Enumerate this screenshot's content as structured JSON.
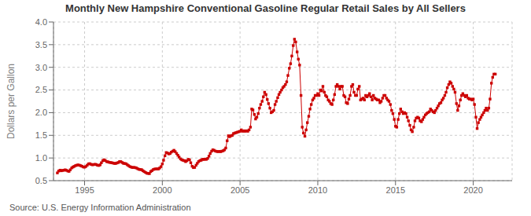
{
  "chart_data": {
    "type": "line",
    "title": "Monthly New Hampshire Conventional Gasoline Regular Retail Sales by All Sellers",
    "ylabel": "Dollars per Gallon",
    "annotation": "Source: U.S. Energy Information Administration",
    "color": "#cc0000",
    "marker": "square",
    "line_style": "solid",
    "grid": true,
    "xlim": [
      1993.0,
      2022.5
    ],
    "xticks": [
      1995,
      2000,
      2005,
      2010,
      2015,
      2020
    ],
    "ylim": [
      0.5,
      4.0
    ],
    "yticks": [
      0.5,
      {
        "value": 1.0,
        "label": "1.0"
      },
      1.5,
      {
        "value": 2.0,
        "label": "2.0"
      },
      2.5,
      {
        "value": 3.0,
        "label": "3.0"
      },
      3.5,
      {
        "value": 4.0,
        "label": "4.0"
      }
    ],
    "x": [
      1993.25,
      1993.33,
      1993.42,
      1993.5,
      1993.58,
      1993.67,
      1993.75,
      1993.83,
      1993.92,
      1994.0,
      1994.08,
      1994.17,
      1994.25,
      1994.33,
      1994.42,
      1994.5,
      1994.58,
      1994.67,
      1994.75,
      1994.83,
      1994.92,
      1995.0,
      1995.08,
      1995.17,
      1995.25,
      1995.33,
      1995.42,
      1995.5,
      1995.58,
      1995.67,
      1995.75,
      1995.83,
      1995.92,
      1996.0,
      1996.08,
      1996.17,
      1996.25,
      1996.33,
      1996.42,
      1996.5,
      1996.58,
      1996.67,
      1996.75,
      1996.83,
      1996.92,
      1997.0,
      1997.08,
      1997.17,
      1997.25,
      1997.33,
      1997.42,
      1997.5,
      1997.58,
      1997.67,
      1997.75,
      1997.83,
      1997.92,
      1998.0,
      1998.08,
      1998.17,
      1998.25,
      1998.33,
      1998.42,
      1998.5,
      1998.58,
      1998.67,
      1998.75,
      1998.83,
      1998.92,
      1999.0,
      1999.08,
      1999.17,
      1999.25,
      1999.33,
      1999.42,
      1999.5,
      1999.58,
      1999.67,
      1999.75,
      1999.83,
      1999.92,
      2000.0,
      2000.08,
      2000.17,
      2000.25,
      2000.33,
      2000.42,
      2000.5,
      2000.58,
      2000.67,
      2000.75,
      2000.83,
      2000.92,
      2001.0,
      2001.08,
      2001.17,
      2001.25,
      2001.33,
      2001.42,
      2001.5,
      2001.58,
      2001.67,
      2001.75,
      2001.83,
      2001.92,
      2002.0,
      2002.08,
      2002.17,
      2002.25,
      2002.33,
      2002.42,
      2002.5,
      2002.58,
      2002.67,
      2002.75,
      2002.83,
      2002.92,
      2003.0,
      2003.08,
      2003.17,
      2003.25,
      2003.33,
      2003.42,
      2003.5,
      2003.58,
      2003.67,
      2003.75,
      2003.83,
      2003.92,
      2004.0,
      2004.08,
      2004.17,
      2004.25,
      2004.33,
      2004.42,
      2004.5,
      2004.58,
      2004.67,
      2004.75,
      2004.83,
      2004.92,
      2005.0,
      2005.08,
      2005.17,
      2005.25,
      2005.33,
      2005.42,
      2005.5,
      2005.58,
      2005.67,
      2005.75,
      2005.83,
      2005.92,
      2006.0,
      2006.08,
      2006.17,
      2006.25,
      2006.33,
      2006.42,
      2006.5,
      2006.58,
      2006.67,
      2006.75,
      2006.83,
      2006.92,
      2007.0,
      2007.08,
      2007.17,
      2007.25,
      2007.33,
      2007.42,
      2007.5,
      2007.58,
      2007.67,
      2007.75,
      2007.83,
      2007.92,
      2008.0,
      2008.08,
      2008.17,
      2008.25,
      2008.33,
      2008.42,
      2008.5,
      2008.58,
      2008.67,
      2008.75,
      2008.83,
      2008.92,
      2009.0,
      2009.08,
      2009.17,
      2009.25,
      2009.33,
      2009.42,
      2009.5,
      2009.58,
      2009.67,
      2009.75,
      2009.83,
      2009.92,
      2010.0,
      2010.08,
      2010.17,
      2010.25,
      2010.33,
      2010.42,
      2010.5,
      2010.58,
      2010.67,
      2010.75,
      2010.83,
      2010.92,
      2011.0,
      2011.08,
      2011.17,
      2011.25,
      2011.33,
      2011.42,
      2011.5,
      2011.58,
      2011.67,
      2011.75,
      2011.83,
      2011.92,
      2012.0,
      2012.08,
      2012.17,
      2012.25,
      2012.33,
      2012.42,
      2012.5,
      2012.58,
      2012.67,
      2012.75,
      2012.83,
      2012.92,
      2013.0,
      2013.08,
      2013.17,
      2013.25,
      2013.33,
      2013.42,
      2013.5,
      2013.58,
      2013.67,
      2013.75,
      2013.83,
      2013.92,
      2014.0,
      2014.08,
      2014.17,
      2014.25,
      2014.33,
      2014.42,
      2014.5,
      2014.58,
      2014.67,
      2014.75,
      2014.83,
      2014.92,
      2015.0,
      2015.08,
      2015.17,
      2015.25,
      2015.33,
      2015.42,
      2015.5,
      2015.58,
      2015.67,
      2015.75,
      2015.83,
      2015.92,
      2016.0,
      2016.08,
      2016.17,
      2016.25,
      2016.33,
      2016.42,
      2016.5,
      2016.58,
      2016.67,
      2016.75,
      2016.83,
      2016.92,
      2017.0,
      2017.08,
      2017.17,
      2017.25,
      2017.33,
      2017.42,
      2017.5,
      2017.58,
      2017.67,
      2017.75,
      2017.83,
      2017.92,
      2018.0,
      2018.08,
      2018.17,
      2018.25,
      2018.33,
      2018.42,
      2018.5,
      2018.58,
      2018.67,
      2018.75,
      2018.83,
      2018.92,
      2019.0,
      2019.08,
      2019.17,
      2019.25,
      2019.33,
      2019.42,
      2019.5,
      2019.58,
      2019.67,
      2019.75,
      2019.83,
      2019.92,
      2020.0,
      2020.08,
      2020.17,
      2020.25,
      2020.33,
      2020.42,
      2020.5,
      2020.58,
      2020.67,
      2020.75,
      2020.83,
      2020.92,
      2021.0,
      2021.08,
      2021.17,
      2021.25,
      2021.33,
      2021.42
    ],
    "values": [
      0.671,
      0.712,
      0.731,
      0.718,
      0.726,
      0.73,
      0.739,
      0.728,
      0.713,
      0.705,
      0.74,
      0.78,
      0.8,
      0.815,
      0.832,
      0.84,
      0.847,
      0.84,
      0.83,
      0.818,
      0.802,
      0.798,
      0.812,
      0.84,
      0.87,
      0.875,
      0.86,
      0.85,
      0.855,
      0.86,
      0.855,
      0.84,
      0.835,
      0.85,
      0.895,
      0.94,
      0.96,
      0.945,
      0.92,
      0.915,
      0.905,
      0.9,
      0.895,
      0.888,
      0.88,
      0.88,
      0.89,
      0.9,
      0.922,
      0.92,
      0.9,
      0.882,
      0.878,
      0.872,
      0.85,
      0.83,
      0.81,
      0.8,
      0.79,
      0.792,
      0.788,
      0.78,
      0.762,
      0.75,
      0.745,
      0.742,
      0.72,
      0.7,
      0.682,
      0.665,
      0.66,
      0.655,
      0.7,
      0.72,
      0.745,
      0.755,
      0.758,
      0.76,
      0.758,
      0.78,
      0.81,
      0.87,
      0.95,
      1.05,
      1.12,
      1.11,
      1.09,
      1.1,
      1.13,
      1.15,
      1.17,
      1.14,
      1.1,
      1.06,
      1.02,
      0.98,
      0.96,
      0.95,
      0.94,
      0.92,
      0.94,
      0.97,
      0.96,
      0.895,
      0.818,
      0.788,
      0.792,
      0.84,
      0.882,
      0.92,
      0.942,
      0.95,
      0.97,
      0.968,
      0.975,
      0.97,
      0.99,
      1.04,
      1.1,
      1.15,
      1.18,
      1.17,
      1.152,
      1.145,
      1.14,
      1.145,
      1.14,
      1.15,
      1.16,
      1.18,
      1.22,
      1.38,
      1.49,
      1.47,
      1.49,
      1.5,
      1.54,
      1.55,
      1.56,
      1.57,
      1.58,
      1.59,
      1.62,
      1.59,
      1.6,
      1.59,
      1.6,
      1.59,
      1.62,
      1.68,
      2.08,
      2.06,
      1.96,
      1.86,
      1.9,
      1.98,
      2.1,
      2.18,
      2.25,
      2.35,
      2.45,
      2.4,
      2.29,
      2.2,
      2.1,
      2.0,
      2.02,
      2.05,
      2.18,
      2.25,
      2.33,
      2.4,
      2.45,
      2.5,
      2.55,
      2.58,
      2.62,
      2.68,
      2.82,
      2.98,
      3.08,
      3.25,
      3.48,
      3.62,
      3.56,
      3.34,
      3.18,
      3.05,
      2.38,
      1.68,
      1.55,
      1.48,
      1.62,
      1.78,
      1.92,
      2.08,
      2.18,
      2.28,
      2.32,
      2.38,
      2.38,
      2.42,
      2.38,
      2.5,
      2.48,
      2.58,
      2.45,
      2.38,
      2.35,
      2.28,
      2.25,
      2.2,
      2.18,
      2.28,
      2.4,
      2.58,
      2.62,
      2.58,
      2.52,
      2.58,
      2.58,
      2.38,
      2.35,
      2.22,
      2.2,
      2.3,
      2.38,
      2.58,
      2.62,
      2.45,
      2.38,
      2.38,
      2.52,
      2.58,
      2.28,
      2.3,
      2.32,
      2.28,
      2.38,
      2.35,
      2.38,
      2.42,
      2.35,
      2.28,
      2.38,
      2.32,
      2.3,
      2.28,
      2.28,
      2.22,
      2.25,
      2.32,
      2.38,
      2.38,
      2.32,
      2.28,
      2.25,
      2.18,
      2.05,
      1.98,
      1.85,
      1.7,
      1.68,
      1.85,
      1.98,
      2.08,
      2.02,
      1.98,
      2.0,
      1.98,
      1.9,
      1.82,
      1.72,
      1.62,
      1.58,
      1.68,
      1.82,
      1.88,
      1.9,
      1.88,
      1.82,
      1.8,
      1.85,
      1.9,
      1.95,
      1.98,
      2.0,
      2.02,
      2.08,
      2.05,
      2.02,
      2.0,
      2.05,
      2.1,
      2.15,
      2.2,
      2.22,
      2.28,
      2.32,
      2.38,
      2.45,
      2.55,
      2.62,
      2.68,
      2.65,
      2.58,
      2.52,
      2.45,
      2.2,
      2.05,
      2.15,
      2.28,
      2.38,
      2.42,
      2.38,
      2.35,
      2.38,
      2.32,
      2.3,
      2.3,
      2.28,
      2.3,
      2.18,
      1.9,
      1.65,
      1.78,
      1.85,
      1.9,
      1.95,
      2.0,
      2.05,
      2.1,
      2.05,
      2.1,
      2.3,
      2.65,
      2.78,
      2.85,
      2.85
    ]
  }
}
